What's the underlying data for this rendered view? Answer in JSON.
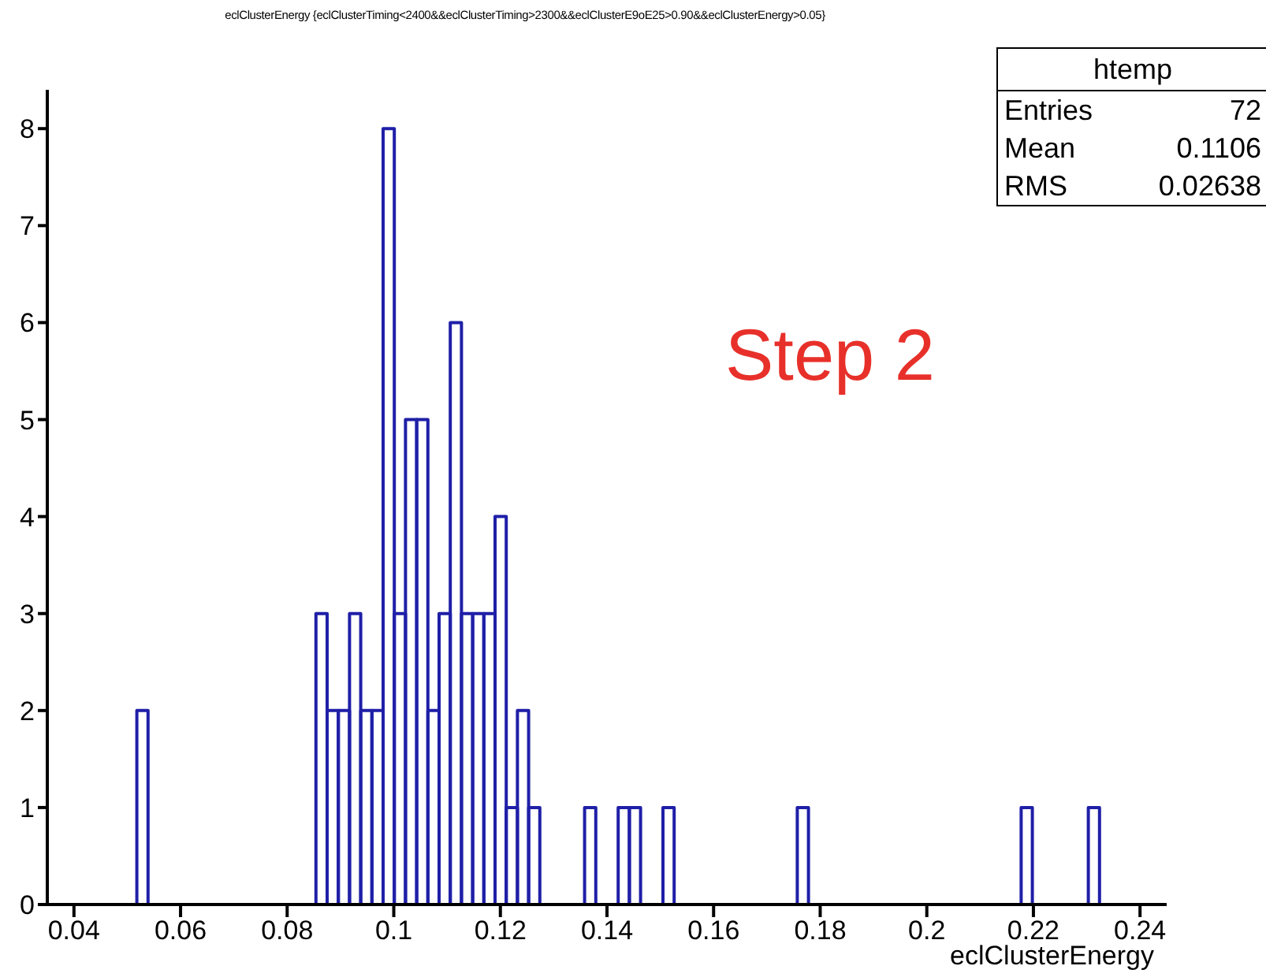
{
  "chart_data": {
    "type": "histogram",
    "title": "eclClusterEnergy {eclClusterTiming<2400&&eclClusterTiming>2300&&eclClusterE9oE25>0.90&&eclClusterEnergy>0.05}",
    "xlabel": "eclClusterEnergy",
    "bins": [
      0.035,
      0.0371,
      0.0392,
      0.0413,
      0.0434,
      0.0455,
      0.0476,
      0.0497,
      0.0518,
      0.0539,
      0.056,
      0.0581,
      0.0602,
      0.0623,
      0.0644,
      0.0665,
      0.0686,
      0.0707,
      0.0728,
      0.0749,
      0.077,
      0.0791,
      0.0812,
      0.0833,
      0.0854,
      0.0875,
      0.0896,
      0.0917,
      0.0938,
      0.0959,
      0.098,
      0.1001,
      0.1022,
      0.1043,
      0.1064,
      0.1085,
      0.1106,
      0.1127,
      0.1148,
      0.1169,
      0.119,
      0.1211,
      0.1232,
      0.1253,
      0.1274,
      0.1295,
      0.1316,
      0.1337,
      0.1358,
      0.1379,
      0.14,
      0.1421,
      0.1442,
      0.1463,
      0.1484,
      0.1505,
      0.1526,
      0.1547,
      0.1568,
      0.1589,
      0.161,
      0.1631,
      0.1652,
      0.1673,
      0.1694,
      0.1715,
      0.1736,
      0.1757,
      0.1778,
      0.1799,
      0.182,
      0.1841,
      0.1862,
      0.1883,
      0.1904,
      0.1925,
      0.1946,
      0.1967,
      0.1988,
      0.2009,
      0.203,
      0.2051,
      0.2072,
      0.2093,
      0.2114,
      0.2135,
      0.2156,
      0.2177,
      0.2198,
      0.2219,
      0.224,
      0.2261,
      0.2282,
      0.2303,
      0.2324,
      0.2345,
      0.2366,
      0.2387,
      0.2408,
      0.2429,
      0.245
    ],
    "values": [
      0,
      0,
      0,
      0,
      0,
      0,
      0,
      0,
      2,
      0,
      0,
      0,
      0,
      0,
      0,
      0,
      0,
      0,
      0,
      0,
      0,
      0,
      0,
      0,
      3,
      2,
      2,
      3,
      2,
      2,
      8,
      3,
      5,
      5,
      2,
      3,
      6,
      3,
      3,
      3,
      4,
      1,
      2,
      1,
      0,
      0,
      0,
      0,
      1,
      0,
      0,
      1,
      1,
      0,
      0,
      1,
      0,
      0,
      0,
      0,
      0,
      0,
      0,
      0,
      0,
      0,
      0,
      1,
      0,
      0,
      0,
      0,
      0,
      0,
      0,
      0,
      0,
      0,
      0,
      0,
      0,
      0,
      0,
      0,
      0,
      0,
      0,
      1,
      0,
      0,
      0,
      0,
      0,
      1,
      0,
      0,
      0,
      0,
      0,
      0
    ],
    "color": "#1f1fa8",
    "xlim": [
      0.035,
      0.245
    ],
    "xticks": [
      0.04,
      0.06,
      0.08,
      0.1,
      0.12,
      0.14,
      0.16,
      0.18,
      0.2,
      0.22,
      0.24
    ],
    "ylim": [
      0,
      8.4
    ],
    "yticks": [
      0,
      1,
      2,
      3,
      4,
      5,
      6,
      7,
      8
    ],
    "grid": false,
    "legend": false,
    "annotations": [
      "htemp",
      "Entries",
      "72",
      "Mean",
      "0.1106",
      "RMS",
      "0.02638",
      "Step 2"
    ]
  }
}
